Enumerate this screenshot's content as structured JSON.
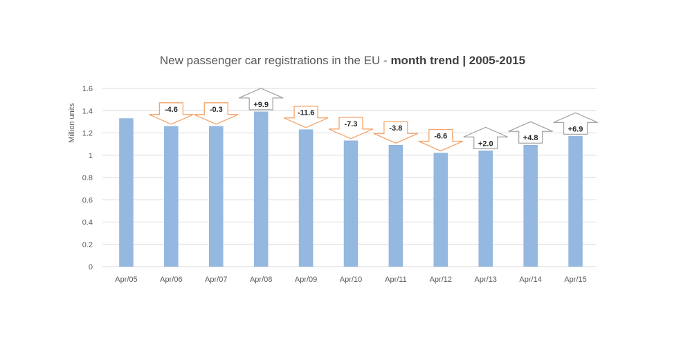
{
  "chart_data": {
    "type": "bar",
    "title": {
      "light": "New passenger car registrations in the EU - ",
      "bold": "month trend | 2005-2015"
    },
    "xlabel": "",
    "ylabel": "Million units",
    "ylim": [
      0,
      1.6
    ],
    "yticks": [
      "0",
      "0.2",
      "0.4",
      "0.6",
      "0.8",
      "1",
      "1.2",
      "1.4",
      "1.6"
    ],
    "ytick_values": [
      0,
      0.2,
      0.4,
      0.6,
      0.8,
      1.0,
      1.2,
      1.4,
      1.6
    ],
    "grid": true,
    "legend": "none",
    "categories": [
      "Apr/05",
      "Apr/06",
      "Apr/07",
      "Apr/08",
      "Apr/09",
      "Apr/10",
      "Apr/11",
      "Apr/12",
      "Apr/13",
      "Apr/14",
      "Apr/15"
    ],
    "values": [
      1.33,
      1.26,
      1.26,
      1.39,
      1.23,
      1.13,
      1.09,
      1.02,
      1.04,
      1.09,
      1.17
    ],
    "annotations": [
      null,
      {
        "label": "-4.6",
        "direction": "down"
      },
      {
        "label": "-0.3",
        "direction": "down"
      },
      {
        "label": "+9.9",
        "direction": "up"
      },
      {
        "label": "-11.6",
        "direction": "down"
      },
      {
        "label": "-7.3",
        "direction": "down"
      },
      {
        "label": "-3.8",
        "direction": "down"
      },
      {
        "label": "-6.6",
        "direction": "down"
      },
      {
        "label": "+2.0",
        "direction": "up"
      },
      {
        "label": "+4.8",
        "direction": "up"
      },
      {
        "label": "+6.9",
        "direction": "up"
      }
    ],
    "colors": {
      "bar": "#95b8e0",
      "down_arrow": "#f4a46a",
      "up_arrow": "#a6a6a6"
    }
  }
}
